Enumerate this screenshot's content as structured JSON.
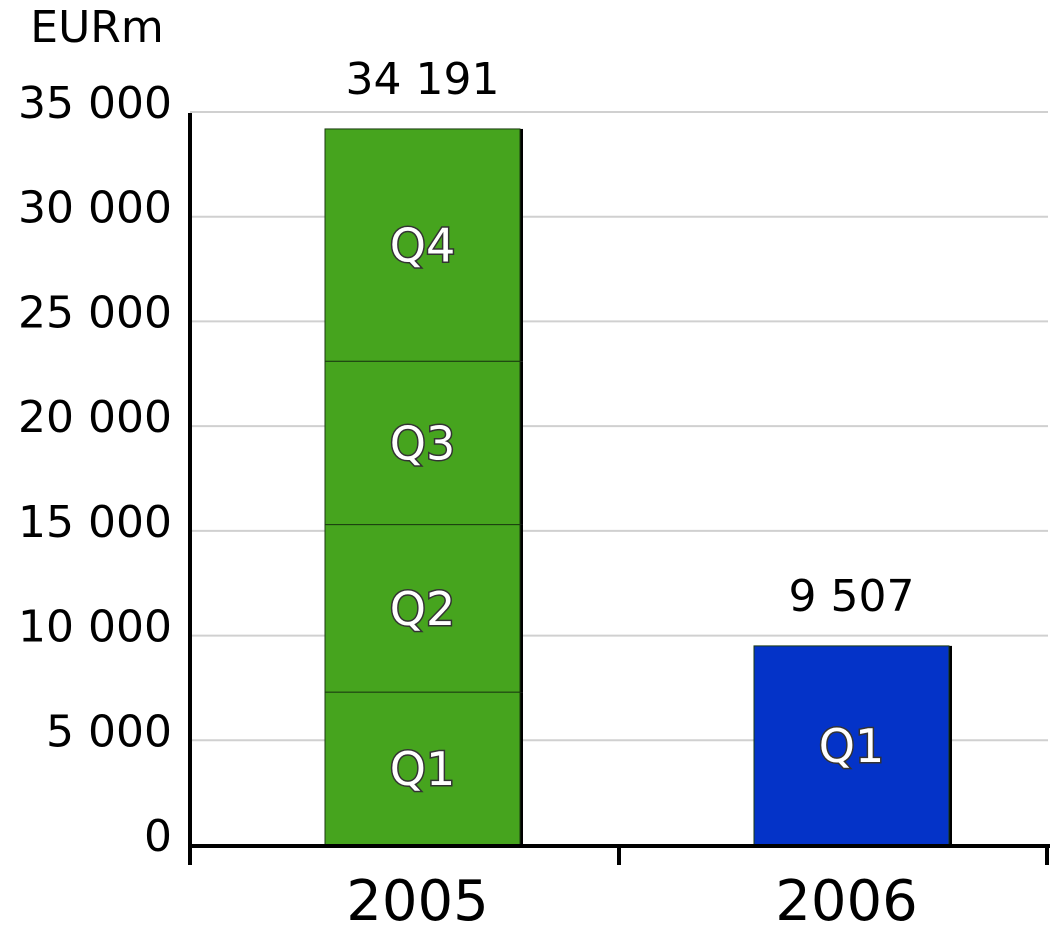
{
  "chart_data": {
    "type": "stacked_bar",
    "y_axis_label": "EURm",
    "categories": [
      "2005",
      "2006"
    ],
    "colors": [
      "#46a41e",
      "#0433c8"
    ],
    "series": [
      {
        "name": "Q1",
        "values": [
          7300,
          9507
        ]
      },
      {
        "name": "Q2",
        "values": [
          8000,
          null
        ]
      },
      {
        "name": "Q3",
        "values": [
          7800,
          null
        ]
      },
      {
        "name": "Q4",
        "values": [
          11091,
          null
        ]
      }
    ],
    "totals": [
      34191,
      9507
    ],
    "total_labels": [
      "34 191",
      "9 507"
    ],
    "ylim": [
      0,
      35000
    ],
    "yticks": [
      0,
      {
        "value": 5000,
        "label": "5 000"
      },
      {
        "value": 10000,
        "label": "10 000"
      },
      {
        "value": 15000,
        "label": "15 000"
      },
      {
        "value": 20000,
        "label": "20 000"
      },
      {
        "value": 25000,
        "label": "25 000"
      },
      {
        "value": 30000,
        "label": "30 000"
      },
      {
        "value": 35000,
        "label": "35 000"
      }
    ],
    "grid": true
  }
}
